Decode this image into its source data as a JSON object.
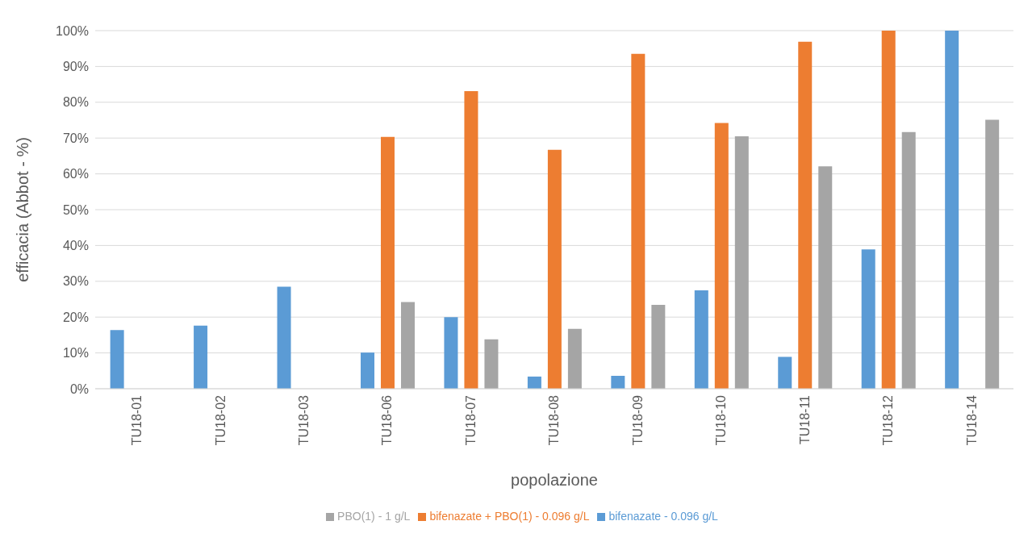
{
  "chart_data": {
    "type": "bar",
    "xlabel": "popolazione",
    "ylabel": "efficacia (Abbot - %)",
    "categories": [
      "TU18-01",
      "TU18-02",
      "TU18-03",
      "TU18-06",
      "TU18-07",
      "TU18-08",
      "TU18-09",
      "TU18-10",
      "TU18-11",
      "TU18-12",
      "TU18-14"
    ],
    "series": [
      {
        "name": "bifenazate - 0.096 g/L",
        "color": "#5b9bd5",
        "values": [
          16.4,
          17.6,
          28.5,
          10.1,
          20,
          3.4,
          3.6,
          27.5,
          8.9,
          38.9,
          100
        ]
      },
      {
        "name": "bifenazate + PBO(1) - 0.096 g/L",
        "color": "#ed7d31",
        "values": [
          null,
          null,
          null,
          70.3,
          83.1,
          66.7,
          93.5,
          74.2,
          96.9,
          100,
          null
        ]
      },
      {
        "name": "PBO(1) - 1 g/L",
        "color": "#a5a5a5",
        "values": [
          null,
          null,
          null,
          24.2,
          13.8,
          16.7,
          23.4,
          70.5,
          62.1,
          71.7,
          75.1
        ]
      }
    ],
    "ylim": [
      0,
      100
    ],
    "yticks": [
      {
        "value": 0,
        "label": "0%"
      },
      {
        "value": 10,
        "label": "10%"
      },
      {
        "value": 20,
        "label": "20%"
      },
      {
        "value": 30,
        "label": "30%"
      },
      {
        "value": 40,
        "label": "40%"
      },
      {
        "value": 50,
        "label": "50%"
      },
      {
        "value": 60,
        "label": "60%"
      },
      {
        "value": 70,
        "label": "70%"
      },
      {
        "value": 80,
        "label": "80%"
      },
      {
        "value": 90,
        "label": "90%"
      },
      {
        "value": 100,
        "label": "100%"
      }
    ],
    "grid": "y",
    "legend": "bottom"
  }
}
